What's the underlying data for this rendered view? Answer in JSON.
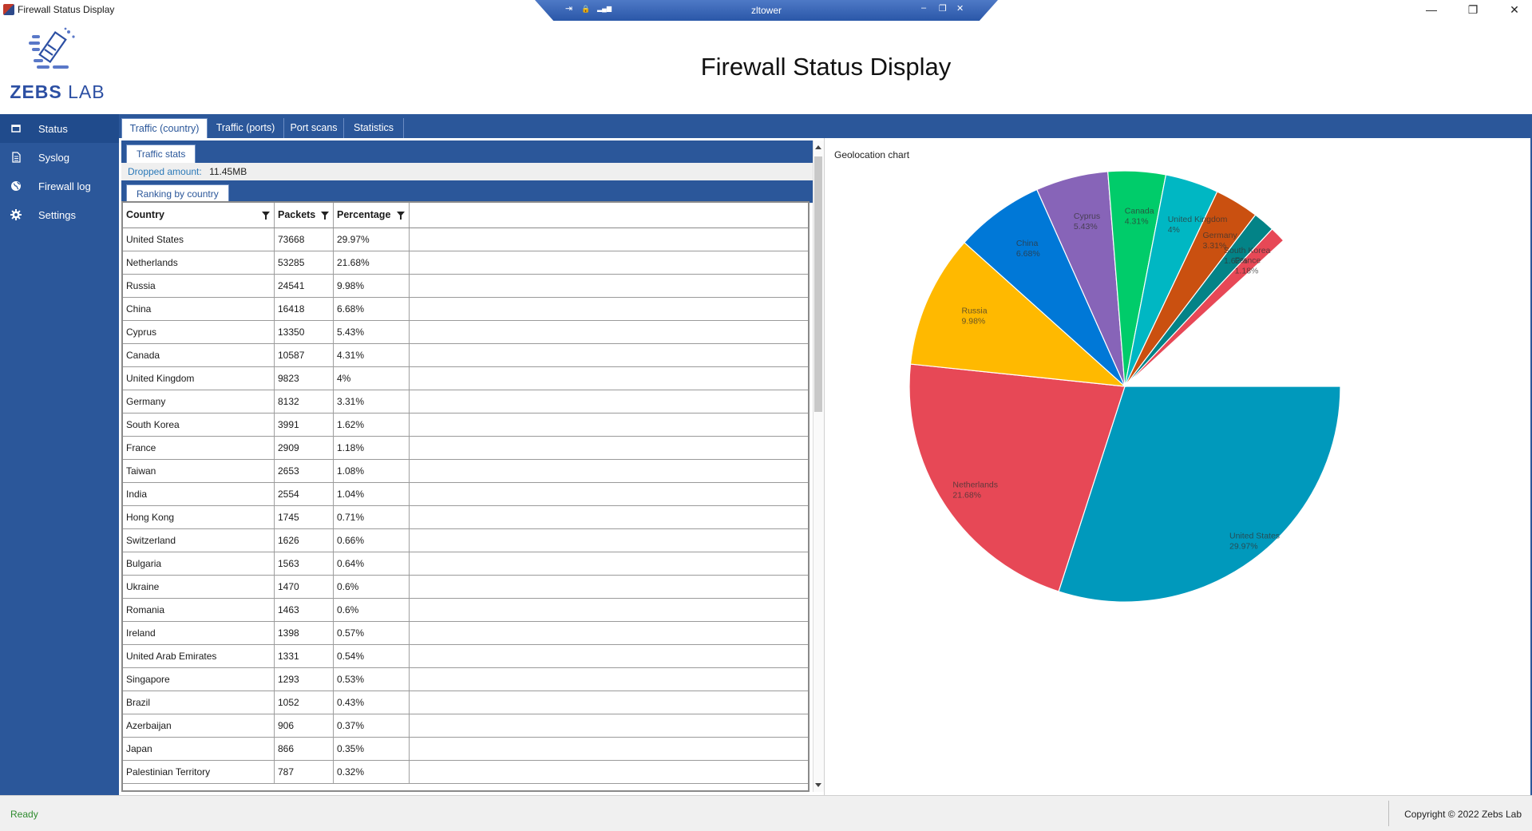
{
  "window": {
    "title": "Firewall Status Display",
    "minimize_glyph": "—",
    "maximize_glyph": "❐",
    "close_glyph": "✕"
  },
  "remote_session": {
    "host": "zltower",
    "pin_glyph": "⇥",
    "lock_glyph": "🔒",
    "signal_glyph": "▂▄▆",
    "minimize_glyph": "–",
    "restore_glyph": "❐",
    "close_glyph": "✕"
  },
  "header": {
    "logo_bold": "ZEBS",
    "logo_light": "LAB",
    "title": "Firewall Status Display"
  },
  "sidebar": {
    "items": [
      {
        "label": "Status",
        "icon": "status-icon",
        "active": true
      },
      {
        "label": "Syslog",
        "icon": "document-icon",
        "active": false
      },
      {
        "label": "Firewall log",
        "icon": "globe-icon",
        "active": false
      },
      {
        "label": "Settings",
        "icon": "gear-icon",
        "active": false
      }
    ]
  },
  "tabs": [
    {
      "label": "Traffic (country)",
      "active": true
    },
    {
      "label": "Traffic (ports)",
      "active": false
    },
    {
      "label": "Port scans",
      "active": false
    },
    {
      "label": "Statistics",
      "active": false
    }
  ],
  "traffic_stats": {
    "tab_label": "Traffic stats",
    "dropped_label": "Dropped amount:",
    "dropped_value": "11.45MB"
  },
  "ranking": {
    "tab_label": "Ranking by country",
    "columns": [
      "Country",
      "Packets",
      "Percentage"
    ],
    "rows": [
      [
        "United States",
        "73668",
        "29.97%"
      ],
      [
        "Netherlands",
        "53285",
        "21.68%"
      ],
      [
        "Russia",
        "24541",
        "9.98%"
      ],
      [
        "China",
        "16418",
        "6.68%"
      ],
      [
        "Cyprus",
        "13350",
        "5.43%"
      ],
      [
        "Canada",
        "10587",
        "4.31%"
      ],
      [
        "United Kingdom",
        "9823",
        "4%"
      ],
      [
        "Germany",
        "8132",
        "3.31%"
      ],
      [
        "South Korea",
        "3991",
        "1.62%"
      ],
      [
        "France",
        "2909",
        "1.18%"
      ],
      [
        "Taiwan",
        "2653",
        "1.08%"
      ],
      [
        "India",
        "2554",
        "1.04%"
      ],
      [
        "Hong Kong",
        "1745",
        "0.71%"
      ],
      [
        "Switzerland",
        "1626",
        "0.66%"
      ],
      [
        "Bulgaria",
        "1563",
        "0.64%"
      ],
      [
        "Ukraine",
        "1470",
        "0.6%"
      ],
      [
        "Romania",
        "1463",
        "0.6%"
      ],
      [
        "Ireland",
        "1398",
        "0.57%"
      ],
      [
        "United Arab Emirates",
        "1331",
        "0.54%"
      ],
      [
        "Singapore",
        "1293",
        "0.53%"
      ],
      [
        "Brazil",
        "1052",
        "0.43%"
      ],
      [
        "Azerbaijan",
        "906",
        "0.37%"
      ],
      [
        "Japan",
        "866",
        "0.35%"
      ],
      [
        "Palestinian Territory",
        "787",
        "0.32%"
      ]
    ]
  },
  "chart": {
    "title": "Geolocation chart"
  },
  "chart_data": {
    "type": "pie",
    "title": "Geolocation chart",
    "slices": [
      {
        "label": "United States",
        "value_label": "29.97%",
        "value": 29.97,
        "color": "#0099bc"
      },
      {
        "label": "Netherlands",
        "value_label": "21.68%",
        "value": 21.68,
        "color": "#e74856"
      },
      {
        "label": "Russia",
        "value_label": "9.98%",
        "value": 9.98,
        "color": "#ffb900"
      },
      {
        "label": "China",
        "value_label": "6.68%",
        "value": 6.68,
        "color": "#0078d7"
      },
      {
        "label": "Cyprus",
        "value_label": "5.43%",
        "value": 5.43,
        "color": "#8764b8"
      },
      {
        "label": "Canada",
        "value_label": "4.31%",
        "value": 4.31,
        "color": "#00cc6a"
      },
      {
        "label": "United Kingdom",
        "value_label": "4%",
        "value": 4.0,
        "color": "#00b7c3"
      },
      {
        "label": "Germany",
        "value_label": "3.31%",
        "value": 3.31,
        "color": "#ca5010"
      },
      {
        "label": "South Korea",
        "value_label": "1.62%",
        "value": 1.62,
        "color": "#038387"
      },
      {
        "label": "France",
        "value_label": "1.18%",
        "value": 1.18,
        "color": "#e74856"
      }
    ]
  },
  "statusbar": {
    "status": "Ready",
    "copyright": "Copyright © 2022 Zebs Lab"
  }
}
